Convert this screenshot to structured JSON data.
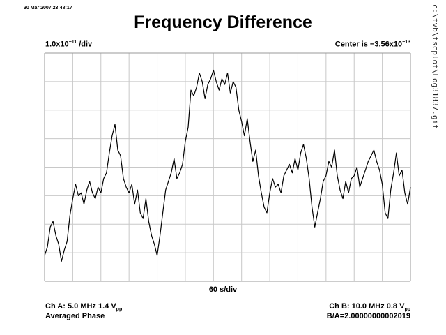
{
  "timestamp": "30 Mar 2007 23:48:17",
  "file_path": "c:\\tvb\\tscplot\\Log31837.gif",
  "chart_data": {
    "type": "line",
    "title": "Frequency Difference",
    "y_scale": {
      "prefix": "1.0x10",
      "exponent": "−11",
      "suffix": " /div"
    },
    "center": {
      "prefix": "Center is −3.56x10",
      "exponent": "−13"
    },
    "x_scale": "60 s/div",
    "grid": true,
    "x_divisions": 13,
    "y_divisions": 8,
    "xlim": [
      0,
      780
    ],
    "ylim": [
      -4,
      4
    ],
    "x_units": "s",
    "y_units": "div",
    "series": [
      {
        "x": [
          0,
          6,
          12,
          18,
          24,
          30,
          36,
          42,
          48,
          54,
          60,
          66,
          72,
          78,
          84,
          90,
          96,
          102,
          108,
          114,
          120,
          126,
          132,
          138,
          144,
          150,
          156,
          162,
          168,
          174,
          180,
          186,
          192,
          198,
          204,
          210,
          216,
          222,
          228,
          234,
          240,
          246,
          252,
          258,
          264,
          270,
          276,
          282,
          288,
          294,
          300,
          306,
          312,
          318,
          324,
          330,
          336,
          342,
          348,
          354,
          360,
          366,
          372,
          378,
          384,
          390,
          396,
          402,
          408,
          414,
          420,
          426,
          432,
          438,
          444,
          450,
          456,
          462,
          468,
          474,
          480,
          486,
          492,
          498,
          504,
          510,
          516,
          522,
          528,
          534,
          540,
          546,
          552,
          558,
          564,
          570,
          576,
          582,
          588,
          594,
          600,
          606,
          612,
          618,
          624,
          630,
          636,
          642,
          648,
          654,
          660,
          666,
          672,
          678,
          684,
          690,
          696,
          702,
          708,
          714,
          720,
          726,
          732,
          738,
          744,
          750,
          756,
          762,
          768,
          774,
          780
        ],
        "values": [
          -3.1,
          -2.8,
          -2.1,
          -1.9,
          -2.4,
          -2.7,
          -3.3,
          -2.9,
          -2.6,
          -1.7,
          -1.1,
          -0.6,
          -1.0,
          -0.9,
          -1.3,
          -0.8,
          -0.5,
          -0.9,
          -1.1,
          -0.7,
          -0.9,
          -0.4,
          -0.2,
          0.5,
          1.1,
          1.5,
          0.6,
          0.4,
          -0.4,
          -0.7,
          -0.9,
          -0.6,
          -1.3,
          -0.8,
          -1.6,
          -1.8,
          -1.1,
          -1.9,
          -2.4,
          -2.7,
          -3.1,
          -2.4,
          -1.6,
          -0.8,
          -0.5,
          -0.2,
          0.3,
          -0.4,
          -0.2,
          0.1,
          0.9,
          1.4,
          2.7,
          2.5,
          2.8,
          3.3,
          3.0,
          2.4,
          2.9,
          3.1,
          3.4,
          3.0,
          2.7,
          3.1,
          2.9,
          3.3,
          2.6,
          3.0,
          2.8,
          2.0,
          1.6,
          1.1,
          1.7,
          0.9,
          0.2,
          0.6,
          -0.3,
          -0.9,
          -1.4,
          -1.6,
          -0.9,
          -0.4,
          -0.7,
          -0.6,
          -0.9,
          -0.3,
          -0.1,
          0.1,
          -0.2,
          0.3,
          -0.1,
          0.5,
          0.8,
          0.3,
          -0.4,
          -1.4,
          -2.1,
          -1.6,
          -1.1,
          -0.5,
          -0.3,
          0.2,
          0.0,
          0.6,
          -0.3,
          -0.8,
          -1.1,
          -0.5,
          -0.9,
          -0.4,
          -0.3,
          0.0,
          -0.7,
          -0.4,
          -0.1,
          0.2,
          0.4,
          0.6,
          0.2,
          -0.1,
          -0.6,
          -1.6,
          -1.8,
          -0.8,
          -0.2,
          0.5,
          -0.3,
          -0.1,
          -0.9,
          -1.3,
          -0.7
        ]
      }
    ]
  },
  "footer": {
    "ch_a": {
      "prefix": "Ch A: 5.0 MHz 1.4 V",
      "sub": "pp"
    },
    "mode": "Averaged Phase",
    "ch_b": {
      "prefix": "Ch B: 10.0 MHz 0.8 V",
      "sub": "pp"
    },
    "ratio": "B/A=2.00000000002019"
  }
}
